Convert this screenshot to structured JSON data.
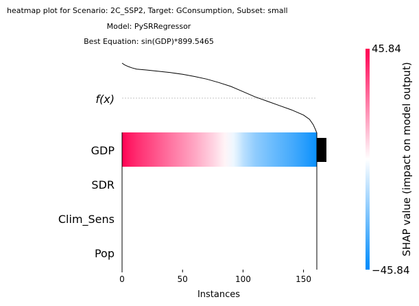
{
  "chart_data": {
    "type": "heatmap",
    "title_lines": [
      "heatmap plot for Scenario: 2C_SSP2, Target: GConsumption, Subset: small",
      "Model: PySRRegressor",
      "Best Equation: sin(GDP)*899.5465"
    ],
    "fx_label": "f(x)",
    "xlabel": "Instances",
    "xlim": [
      0,
      161
    ],
    "x_ticks": [
      "0",
      "50",
      "100",
      "150"
    ],
    "x_tick_values": [
      0,
      50,
      100,
      150
    ],
    "features": [
      "GDP",
      "SDR",
      "Clim_Sens",
      "Pop"
    ],
    "n_instances": 161,
    "gdp_shap_profile": {
      "x": [
        0,
        5,
        12,
        25,
        40,
        60,
        75,
        85,
        92,
        96,
        100,
        110,
        125,
        140,
        150,
        161
      ],
      "value": [
        45.84,
        42,
        38,
        32,
        25,
        16,
        8,
        2,
        -3,
        -7,
        -12,
        -20,
        -27,
        -33,
        -38,
        -44
      ]
    },
    "fx_curve": {
      "x": [
        0,
        2,
        5,
        8,
        12,
        20,
        30,
        40,
        50,
        60,
        70,
        80,
        90,
        100,
        110,
        120,
        130,
        140,
        150,
        155,
        158,
        160,
        161
      ],
      "y": [
        899,
        880,
        860,
        845,
        830,
        820,
        805,
        790,
        770,
        745,
        715,
        675,
        630,
        570,
        510,
        460,
        410,
        360,
        300,
        250,
        190,
        130,
        90
      ]
    },
    "fx_baseline": 590,
    "fx_range": [
      60,
      915
    ],
    "feature_importance": [
      1,
      0,
      0,
      0
    ],
    "colorbar": {
      "label": "SHAP value (impact on model output)",
      "max_label": "45.84",
      "min_label": "−45.84",
      "vmin": -45.84,
      "vmax": 45.84,
      "colors": [
        "#008bfb",
        "#ffffff",
        "#ff0052"
      ]
    }
  }
}
